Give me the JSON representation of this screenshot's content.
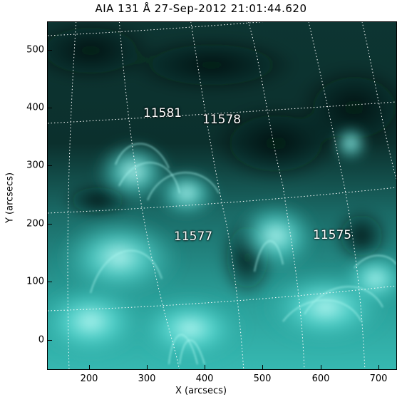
{
  "image": {
    "title": "AIA 131 Å 27-Sep-2012 21:01:44.620",
    "colormap_accent": "#2fd6cf",
    "grid": "dotted heliographic grid",
    "regions": [
      {
        "label": "11581"
      },
      {
        "label": "11578"
      },
      {
        "label": "11577"
      },
      {
        "label": "11575"
      }
    ]
  },
  "chart_data": {
    "type": "heatmap",
    "title": "AIA 131 Å 27-Sep-2012 21:01:44.620",
    "xlabel": "X (arcsecs)",
    "ylabel": "Y (arcsecs)",
    "xlim": [
      130,
      735
    ],
    "ylim": [
      -50,
      550
    ],
    "x_ticks": [
      "200",
      "300",
      "400",
      "500",
      "600",
      "700"
    ],
    "y_ticks": [
      "0",
      "100",
      "200",
      "300",
      "400",
      "500"
    ],
    "annotations": [
      {
        "text": "11581",
        "x": 330,
        "y": 385
      },
      {
        "text": "11578",
        "x": 430,
        "y": 378
      },
      {
        "text": "11577",
        "x": 380,
        "y": 175
      },
      {
        "text": "11575",
        "x": 645,
        "y": 175
      }
    ]
  }
}
